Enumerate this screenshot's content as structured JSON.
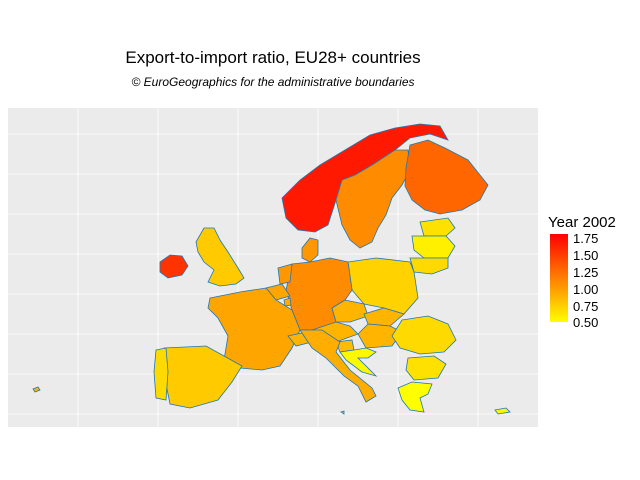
{
  "title": "Export-to-import ratio, EU28+ countries",
  "subtitle": "© EuroGeographics for the administrative boundaries",
  "legend": {
    "title": "Year 2002",
    "ticks": [
      "1.75",
      "1.50",
      "1.25",
      "1.00",
      "0.75",
      "0.50"
    ],
    "color_low": "#ffff00",
    "color_mid": "#ffa500",
    "color_high": "#ff0000"
  },
  "colors": {
    "panel_background": "#ebebeb",
    "gridline": "#ffffff",
    "border": "#1f77b4"
  },
  "regions": [
    {
      "name": "Norway",
      "value": 1.65
    },
    {
      "name": "Sweden",
      "value": 1.2
    },
    {
      "name": "Finland",
      "value": 1.35
    },
    {
      "name": "Iceland",
      "value": 1.0
    },
    {
      "name": "Ireland",
      "value": 1.55
    },
    {
      "name": "United Kingdom",
      "value": 0.85
    },
    {
      "name": "Denmark",
      "value": 1.15
    },
    {
      "name": "Estonia",
      "value": 0.7
    },
    {
      "name": "Latvia",
      "value": 0.6
    },
    {
      "name": "Lithuania",
      "value": 0.75
    },
    {
      "name": "Poland",
      "value": 0.8
    },
    {
      "name": "Germany",
      "value": 1.2
    },
    {
      "name": "Netherlands",
      "value": 1.15
    },
    {
      "name": "Belgium",
      "value": 1.1
    },
    {
      "name": "Luxembourg",
      "value": 1.05
    },
    {
      "name": "France",
      "value": 1.1
    },
    {
      "name": "Switzerland",
      "value": 1.0
    },
    {
      "name": "Austria",
      "value": 1.0
    },
    {
      "name": "Czechia",
      "value": 1.0
    },
    {
      "name": "Slovakia",
      "value": 1.0
    },
    {
      "name": "Hungary",
      "value": 1.0
    },
    {
      "name": "Slovenia",
      "value": 0.95
    },
    {
      "name": "Croatia",
      "value": 0.55
    },
    {
      "name": "Romania",
      "value": 0.75
    },
    {
      "name": "Bulgaria",
      "value": 0.7
    },
    {
      "name": "Greece",
      "value": 0.5
    },
    {
      "name": "Italy",
      "value": 1.05
    },
    {
      "name": "Spain",
      "value": 0.85
    },
    {
      "name": "Portugal",
      "value": 0.75
    },
    {
      "name": "Cyprus",
      "value": 0.55
    },
    {
      "name": "Malta",
      "value": 0.8
    }
  ]
}
